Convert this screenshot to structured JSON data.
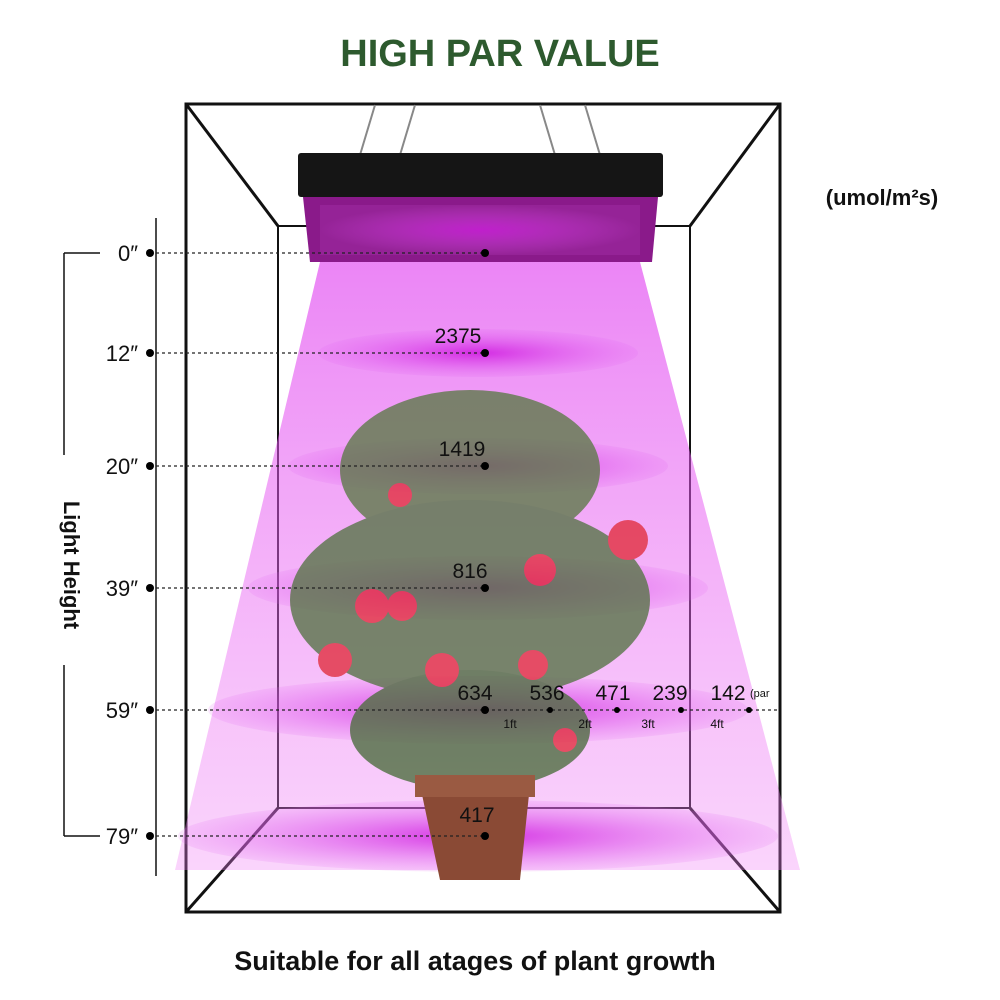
{
  "header": {
    "title": "HIGH PAR VALUE",
    "unit": "(umol/m²s)"
  },
  "axis_label": "Light Height",
  "levels": [
    {
      "height": "0″"
    },
    {
      "height": "12″",
      "par": "2375"
    },
    {
      "height": "20″",
      "par": "1419"
    },
    {
      "height": "39″",
      "par": "816"
    },
    {
      "height": "59″",
      "par": "634"
    },
    {
      "height": "79″",
      "par": "417"
    }
  ],
  "offsets": [
    {
      "par": "536",
      "distance": "1ft"
    },
    {
      "par": "471",
      "distance": "2ft"
    },
    {
      "par": "239",
      "distance": "3ft"
    },
    {
      "par": "142",
      "distance": "4ft"
    }
  ],
  "par_unit": "(par",
  "footer": "Suitable for all atages of plant growth"
}
